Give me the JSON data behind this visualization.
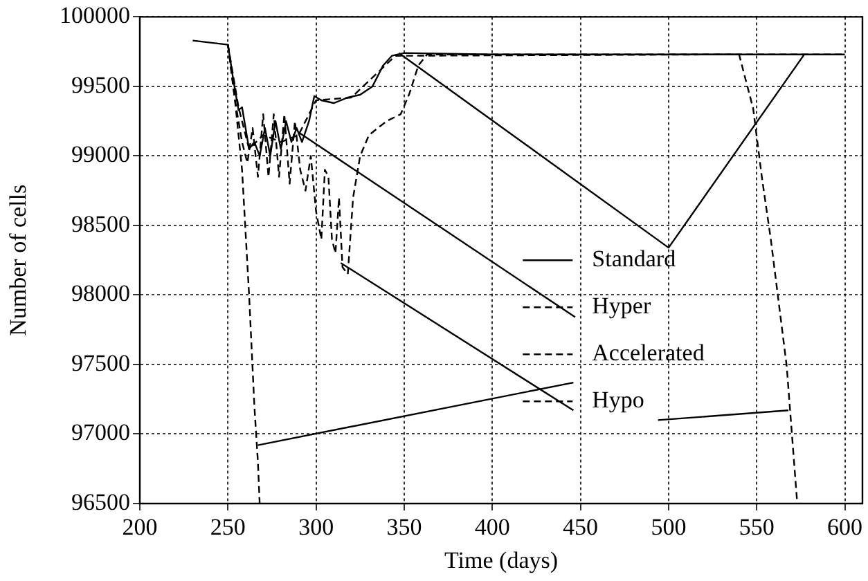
{
  "chart_data": {
    "type": "line",
    "xlabel": "Time (days)",
    "ylabel": "Number of cells",
    "xlim": [
      200,
      610
    ],
    "xticks": [
      200,
      250,
      300,
      350,
      400,
      450,
      500,
      550,
      600
    ],
    "ylim": [
      96500,
      100000
    ],
    "yticks": [
      96500,
      97000,
      97500,
      98000,
      98500,
      99000,
      99500,
      100000
    ],
    "grid": true,
    "legend": "right",
    "marker": "none",
    "series": [
      {
        "name": "Standard",
        "color": "#000000",
        "line_style": "solid",
        "x": [
          230,
          250,
          253,
          256,
          258,
          262,
          265,
          268,
          271,
          274,
          277,
          280,
          283,
          286,
          289,
          292,
          296,
          299,
          303,
          310,
          318,
          325,
          332,
          338,
          343,
          350,
          400,
          450,
          500,
          550,
          600
        ],
        "values": [
          99830,
          99800,
          99550,
          99330,
          99350,
          99050,
          99100,
          99000,
          99200,
          99000,
          99250,
          99050,
          99250,
          99100,
          99200,
          99100,
          99250,
          99430,
          99400,
          99380,
          99420,
          99440,
          99500,
          99650,
          99720,
          99740,
          99730,
          99730,
          99730,
          99730,
          99730
        ]
      },
      {
        "name": "Hyper",
        "color": "#000000",
        "line_style": "dashed",
        "x": [
          250,
          254,
          258,
          261,
          264,
          267,
          270,
          273,
          276,
          279,
          282,
          285,
          288,
          291,
          294,
          297,
          300,
          303,
          305,
          307,
          309,
          311,
          313,
          315,
          318,
          321,
          325,
          330,
          340,
          348,
          353,
          358,
          363,
          400,
          600
        ],
        "values": [
          99800,
          99400,
          99100,
          98950,
          99200,
          98850,
          99300,
          98850,
          99300,
          98850,
          99300,
          98800,
          99250,
          98900,
          98750,
          99000,
          98600,
          98400,
          98900,
          98850,
          98400,
          98300,
          98700,
          98200,
          98150,
          98700,
          99000,
          99150,
          99250,
          99300,
          99450,
          99650,
          99730,
          99730,
          99730
        ]
      },
      {
        "name": "Accelerated",
        "color": "#000000",
        "line_style": "dashed",
        "x": [
          250,
          254,
          258,
          262,
          265,
          267,
          268
        ],
        "values": [
          99800,
          99400,
          98900,
          98000,
          97200,
          96800,
          96500
        ]
      },
      {
        "name": "Hypo",
        "color": "#000000",
        "line_style": "dashed",
        "x": [
          250,
          256,
          262,
          270,
          280,
          290,
          300,
          320,
          345,
          540,
          548,
          553,
          558,
          567,
          573
        ],
        "values": [
          99800,
          99350,
          99050,
          99150,
          99100,
          99150,
          99400,
          99420,
          99720,
          99730,
          99340,
          98840,
          98400,
          97490,
          96500
        ]
      },
      {
        "color": "#000000",
        "line_style": "solid",
        "x": [
          347,
          500,
          577
        ],
        "values": [
          99740,
          98340,
          99730
        ]
      },
      {
        "color": "#000000",
        "line_style": "solid",
        "x": [
          290,
          447
        ],
        "values": [
          99170,
          97840
        ]
      },
      {
        "color": "#000000",
        "line_style": "solid",
        "x": [
          314,
          446
        ],
        "values": [
          98230,
          97170
        ]
      },
      {
        "color": "#000000",
        "line_style": "solid",
        "x": [
          267,
          446
        ],
        "values": [
          96920,
          97370
        ]
      },
      {
        "color": "#000000",
        "line_style": "solid",
        "x": [
          494,
          568
        ],
        "values": [
          97100,
          97170
        ]
      }
    ]
  }
}
